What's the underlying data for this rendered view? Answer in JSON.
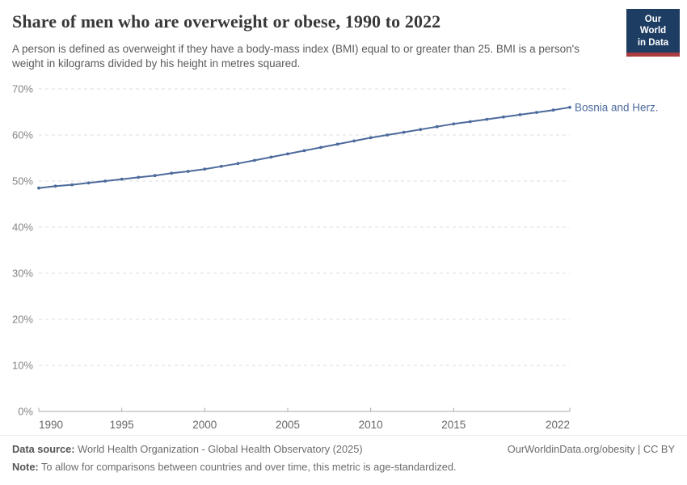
{
  "header": {
    "title": "Share of men who are overweight or obese, 1990 to 2022",
    "subtitle": "A person is defined as overweight if they have a body-mass index (BMI) equal to or greater than 25. BMI is a person's weight in kilograms divided by his height in metres squared.",
    "logo": {
      "line1": "Our World",
      "line2": "in Data"
    }
  },
  "chart_data": {
    "type": "line",
    "title": "Share of men who are overweight or obese, 1990 to 2022",
    "x": [
      1990,
      1991,
      1992,
      1993,
      1994,
      1995,
      1996,
      1997,
      1998,
      1999,
      2000,
      2001,
      2002,
      2003,
      2004,
      2005,
      2006,
      2007,
      2008,
      2009,
      2010,
      2011,
      2012,
      2013,
      2014,
      2015,
      2016,
      2017,
      2018,
      2019,
      2020,
      2021,
      2022
    ],
    "series": [
      {
        "name": "Bosnia and Herz.",
        "color": "#4C6A9C",
        "values": [
          48.5,
          48.9,
          49.2,
          49.6,
          50.0,
          50.4,
          50.8,
          51.2,
          51.7,
          52.1,
          52.6,
          53.2,
          53.8,
          54.5,
          55.2,
          55.9,
          56.6,
          57.3,
          58.0,
          58.7,
          59.4,
          60.0,
          60.6,
          61.2,
          61.8,
          62.4,
          62.9,
          63.4,
          63.9,
          64.4,
          64.9,
          65.4,
          66.0
        ]
      }
    ],
    "xlabel": "",
    "ylabel": "",
    "ylim": [
      0,
      70
    ],
    "yticks": [
      0,
      10,
      20,
      30,
      40,
      50,
      60,
      70
    ],
    "ytick_suffix": "%",
    "xticks": [
      1990,
      1995,
      2000,
      2005,
      2010,
      2015,
      2022
    ],
    "grid": "horizontal-dashed",
    "legend_position": "end-of-line-label",
    "colors": {
      "gridline": "#dcdcdc",
      "axis_line": "#a8a8a8",
      "ytick_label": "#848484",
      "xtick_label": "#666666"
    }
  },
  "footer": {
    "datasource_label": "Data source:",
    "datasource_value": "World Health Organization - Global Health Observatory (2025)",
    "note_label": "Note:",
    "note_value": "To allow for comparisons between countries and over time, this metric is age-standardized.",
    "link": "OurWorldinData.org/obesity | CC BY"
  }
}
